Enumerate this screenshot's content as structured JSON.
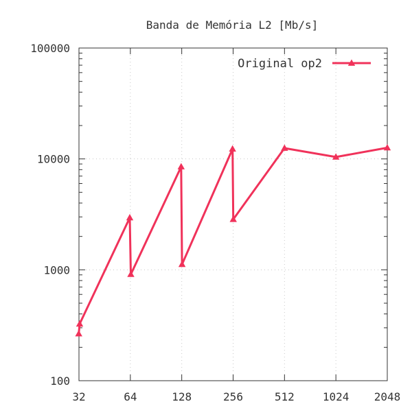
{
  "chart_data": {
    "type": "line",
    "title": "Banda de Memória L2 [Mb/s]",
    "xlabel": "",
    "ylabel": "",
    "x_scale": "log2",
    "y_scale": "log10",
    "xlim": [
      32,
      2048
    ],
    "ylim": [
      100,
      100000
    ],
    "x_ticks": [
      32,
      64,
      128,
      256,
      512,
      1024,
      2048
    ],
    "x_tick_labels": [
      "32",
      "64",
      "128",
      "256",
      "512",
      "1024",
      "2048"
    ],
    "y_ticks": [
      100,
      1000,
      10000,
      100000
    ],
    "y_tick_labels": [
      "100",
      "1000",
      "10000",
      "100000"
    ],
    "grid": true,
    "legend_position": "top-right",
    "series": [
      {
        "name": "Original op2",
        "color": "#f0325a",
        "marker": "triangle",
        "points": [
          {
            "x": 31.9,
            "y": 265
          },
          {
            "x": 32.3,
            "y": 325
          },
          {
            "x": 63.5,
            "y": 2950
          },
          {
            "x": 64.4,
            "y": 910
          },
          {
            "x": 127,
            "y": 8500
          },
          {
            "x": 128.5,
            "y": 1120
          },
          {
            "x": 254,
            "y": 12300
          },
          {
            "x": 256.5,
            "y": 2850
          },
          {
            "x": 512,
            "y": 12500
          },
          {
            "x": 1024,
            "y": 10400
          },
          {
            "x": 2048,
            "y": 12600
          }
        ]
      }
    ]
  }
}
